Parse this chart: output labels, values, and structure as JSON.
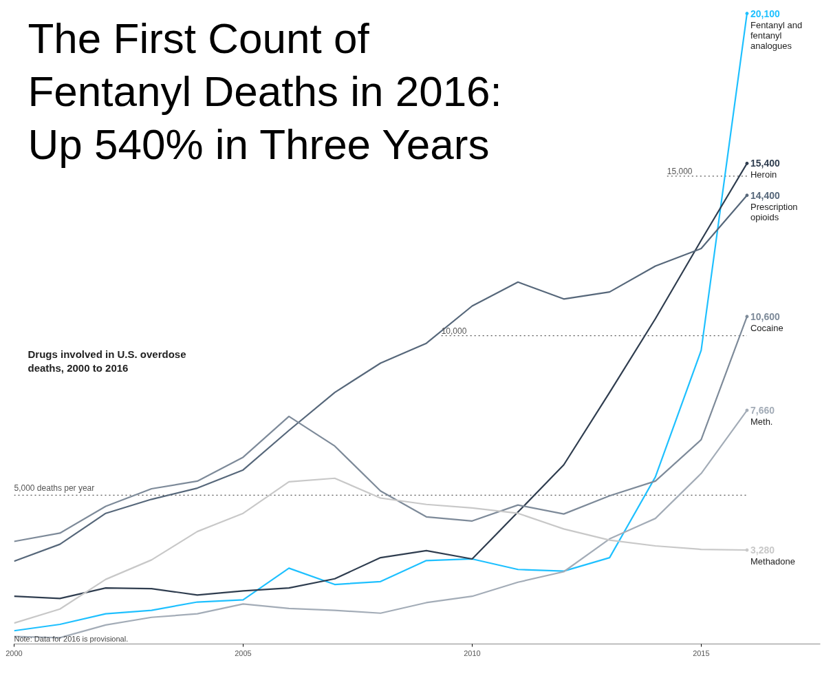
{
  "chart_data": {
    "type": "line",
    "title": "The First Count of\nFentanyl Deaths in 2016:\nUp 540% in Three Years",
    "subtitle": "Drugs involved in U.S. overdose\ndeaths, 2000 to 2016",
    "annotations": [
      "Note: Data for 2016 is provisional."
    ],
    "x": [
      2000,
      2001,
      2002,
      2003,
      2004,
      2005,
      2006,
      2007,
      2008,
      2009,
      2010,
      2011,
      2012,
      2013,
      2014,
      2015,
      2016
    ],
    "xlim": [
      2000,
      2017.6
    ],
    "xticks": [
      2000,
      2005,
      2010,
      2015
    ],
    "tick_labels": "x",
    "grid": false,
    "line_style": "solid",
    "ref_lines": [
      {
        "axis": "y",
        "value": 5000,
        "label": "5,000 deaths per year",
        "line_style": "dotted",
        "color": "#555555"
      },
      {
        "axis": "y",
        "value": 10000,
        "label": "10,000",
        "line_style": "dotted",
        "color": "#555555"
      },
      {
        "axis": "y",
        "value": 15000,
        "label": "15,000",
        "line_style": "dotted",
        "color": "#555555"
      }
    ],
    "series": [
      {
        "name": "Fentanyl and\nfentanyl\nanalogues",
        "color": "#1ec0ff",
        "values": [
          750,
          950,
          1280,
          1390,
          1650,
          1720,
          2710,
          2200,
          2290,
          2950,
          3000,
          2670,
          2620,
          3040,
          5570,
          9540,
          20100
        ],
        "value_labels": [
          null,
          null,
          null,
          null,
          null,
          null,
          null,
          null,
          null,
          null,
          null,
          null,
          null,
          null,
          null,
          null,
          "20,100"
        ]
      },
      {
        "name": "Heroin",
        "color": "#2f3d4f",
        "values": [
          1830,
          1760,
          2090,
          2070,
          1870,
          2000,
          2090,
          2380,
          3040,
          3260,
          3000,
          4470,
          5950,
          8220,
          10530,
          12990,
          15400
        ],
        "value_labels": [
          null,
          null,
          null,
          null,
          null,
          null,
          null,
          null,
          null,
          null,
          null,
          null,
          null,
          null,
          null,
          null,
          "15,400"
        ]
      },
      {
        "name": "Prescription\nopioids",
        "color": "#56677a",
        "values": [
          2930,
          3460,
          4430,
          4870,
          5220,
          5790,
          7030,
          8220,
          9140,
          9760,
          10930,
          11680,
          11150,
          11370,
          12180,
          12730,
          14400
        ],
        "value_labels": [
          null,
          null,
          null,
          null,
          null,
          null,
          null,
          null,
          null,
          null,
          null,
          null,
          null,
          null,
          null,
          null,
          "14,400"
        ]
      },
      {
        "name": "Cocaine",
        "color": "#7d8a99",
        "values": [
          3550,
          3810,
          4650,
          5200,
          5440,
          6190,
          7470,
          6540,
          5130,
          4320,
          4190,
          4690,
          4410,
          4980,
          5440,
          6740,
          10600
        ],
        "value_labels": [
          null,
          null,
          null,
          null,
          null,
          null,
          null,
          null,
          null,
          null,
          null,
          null,
          null,
          null,
          null,
          null,
          "10,600"
        ]
      },
      {
        "name": "Meth.",
        "color": "#a3acb7",
        "values": [
          570,
          530,
          930,
          1170,
          1280,
          1590,
          1450,
          1390,
          1300,
          1630,
          1830,
          2270,
          2600,
          3630,
          4270,
          5680,
          7660
        ],
        "value_labels": [
          null,
          null,
          null,
          null,
          null,
          null,
          null,
          null,
          null,
          null,
          null,
          null,
          null,
          null,
          null,
          null,
          "7,660"
        ]
      },
      {
        "name": "Methadone",
        "color": "#c8c8c8",
        "values": [
          990,
          1430,
          2360,
          2970,
          3860,
          4430,
          5420,
          5530,
          4910,
          4710,
          4600,
          4430,
          3940,
          3590,
          3410,
          3300,
          3280
        ],
        "value_labels": [
          null,
          null,
          null,
          null,
          null,
          null,
          null,
          null,
          null,
          null,
          null,
          null,
          null,
          null,
          null,
          null,
          "3,280"
        ]
      }
    ]
  }
}
